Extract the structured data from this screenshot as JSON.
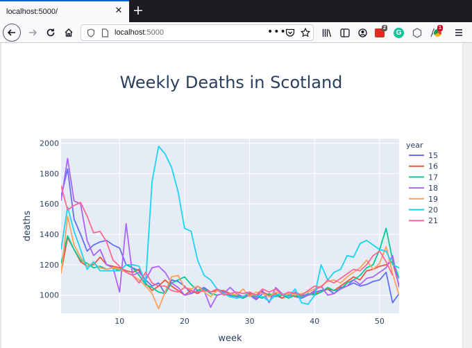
{
  "browser": {
    "tab_title": "localhost:5000/",
    "url_host": "localhost",
    "url_port": ":5000",
    "ext_badge_1": "2",
    "ext_badge_2": "1"
  },
  "chart_data": {
    "type": "line",
    "title": "Weekly Deaths in Scotland",
    "xlabel": "week",
    "ylabel": "deaths",
    "xlim": [
      1,
      53
    ],
    "ylim": [
      880,
      2030
    ],
    "xticks": [
      10,
      20,
      30,
      40,
      50
    ],
    "yticks": [
      1000,
      1200,
      1400,
      1600,
      1800,
      2000
    ],
    "legend_title": "year",
    "legend_position": "right",
    "grid": true,
    "series": [
      {
        "name": "15",
        "color": "#636efa",
        "y": [
          1650,
          1830,
          1500,
          1400,
          1290,
          1330,
          1350,
          1360,
          1330,
          1310,
          1200,
          1180,
          1160,
          1100,
          1060,
          1080,
          1010,
          1100,
          1090,
          1060,
          1010,
          1030,
          1050,
          1020,
          1040,
          1020,
          1000,
          990,
          980,
          1000,
          970,
          1010,
          990,
          1000,
          980,
          1000,
          990,
          980,
          1000,
          1020,
          1030,
          1040,
          1010,
          1050,
          1060,
          1080,
          1060,
          1070,
          1090,
          1100,
          1150,
          950,
          1010
        ]
      },
      {
        "name": "16",
        "color": "#ef553b",
        "y": [
          1150,
          1380,
          1300,
          1220,
          1190,
          1200,
          1250,
          1200,
          1190,
          1180,
          1160,
          1150,
          1170,
          1080,
          1030,
          1060,
          1100,
          1060,
          1030,
          1000,
          1030,
          1010,
          1040,
          1020,
          1030,
          1030,
          1010,
          1000,
          990,
          1010,
          1000,
          1020,
          1000,
          1010,
          980,
          1000,
          990,
          1000,
          1000,
          1010,
          1020,
          1040,
          1030,
          1060,
          1090,
          1120,
          1100,
          1160,
          1170,
          1190,
          1200,
          1220,
          1060
        ]
      },
      {
        "name": "17",
        "color": "#00cc96",
        "y": [
          1210,
          1390,
          1300,
          1230,
          1210,
          1180,
          1190,
          1170,
          1180,
          1160,
          1200,
          1180,
          1130,
          1070,
          1050,
          1020,
          1010,
          1080,
          1100,
          1120,
          1070,
          1030,
          1040,
          1010,
          1000,
          1010,
          990,
          1000,
          980,
          1000,
          990,
          980,
          1010,
          990,
          1000,
          980,
          1000,
          990,
          1010,
          1000,
          1020,
          1050,
          1030,
          1040,
          1080,
          1100,
          1130,
          1180,
          1200,
          1300,
          1440,
          1230,
          1110
        ]
      },
      {
        "name": "18",
        "color": "#ab63fa",
        "y": [
          1620,
          1900,
          1620,
          1600,
          1360,
          1260,
          1300,
          1200,
          1180,
          1020,
          1470,
          1130,
          1150,
          1100,
          1180,
          1190,
          1150,
          1080,
          1050,
          1000,
          1010,
          1060,
          1030,
          920,
          1000,
          1010,
          1050,
          1010,
          990,
          1000,
          980,
          1030,
          950,
          1050,
          1010,
          990,
          1020,
          1000,
          1000,
          1030,
          1060,
          1000,
          1010,
          1040,
          1060,
          1100,
          1070,
          1110,
          1120,
          1150,
          1180,
          1260,
          1050
        ]
      },
      {
        "name": "19",
        "color": "#ffa15a",
        "y": [
          1140,
          1520,
          1330,
          1250,
          1190,
          1210,
          1180,
          1170,
          1180,
          1170,
          1150,
          1130,
          1100,
          1060,
          1010,
          910,
          1020,
          1120,
          1130,
          1050,
          1040,
          1060,
          1020,
          990,
          1030,
          1010,
          1010,
          1000,
          1040,
          990,
          1020,
          1010,
          990,
          1020,
          1000,
          1010,
          1000,
          1010,
          1020,
          1040,
          1060,
          1090,
          1100,
          1080,
          1120,
          1150,
          1180,
          1230,
          1170,
          1210,
          1320,
          1140,
          1000
        ]
      },
      {
        "name": "20",
        "color": "#19d3f3",
        "y": [
          1300,
          1580,
          1420,
          1300,
          1170,
          1220,
          1160,
          1160,
          1160,
          1160,
          1200,
          1200,
          1190,
          1080,
          1750,
          1980,
          1930,
          1840,
          1680,
          1440,
          1420,
          1230,
          1130,
          1100,
          1040,
          1010,
          990,
          980,
          990,
          1020,
          1000,
          990,
          960,
          1000,
          1010,
          990,
          1040,
          950,
          940,
          1000,
          1200,
          1100,
          1150,
          1170,
          1260,
          1250,
          1340,
          1360,
          1330,
          1300,
          1290,
          1200,
          1180
        ]
      },
      {
        "name": "21",
        "color": "#ff6692",
        "y": [
          1720,
          1560,
          1590,
          1610,
          1520,
          1410,
          1420,
          1350,
          1230,
          1190,
          1150,
          1130,
          1080,
          1150,
          1080,
          1060,
          1060,
          1030,
          1020,
          1050,
          1030,
          1020,
          1030,
          1020,
          1040,
          1000,
          1010,
          1020,
          1010,
          1020,
          1000,
          1040,
          1020,
          1040,
          1000,
          1020,
          1010,
          1000,
          1030,
          1060,
          1050,
          1100,
          1080,
          1110,
          1140,
          1170,
          1160,
          1200,
          1260,
          1290,
          1220,
          1130,
          null
        ]
      }
    ]
  }
}
